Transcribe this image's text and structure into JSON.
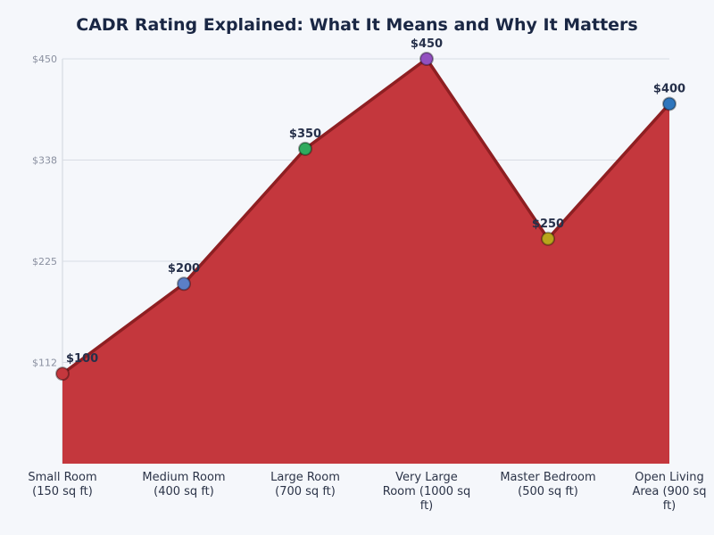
{
  "chart_data": {
    "type": "area",
    "title": "CADR Rating Explained: What It Means and Why It Matters",
    "xlabel": "",
    "ylabel": "",
    "categories": [
      "Small Room (150 sq ft)",
      "Medium Room (400 sq ft)",
      "Large Room (700 sq ft)",
      "Very Large Room (1000 sq ft)",
      "Master Bedroom (500 sq ft)",
      "Open Living Area (900 sq ft)"
    ],
    "values": [
      100,
      200,
      350,
      450,
      250,
      400
    ],
    "data_labels": [
      "$100",
      "$200",
      "$350",
      "$450",
      "$250",
      "$400"
    ],
    "ylim": [
      0,
      450
    ],
    "yticks": [
      112.5,
      225,
      337.5,
      450
    ],
    "ytick_labels": [
      "$112",
      "$225",
      "$338",
      "$450"
    ],
    "grid": true,
    "colors": {
      "fill": "#c4373d",
      "line": "#8e1f22",
      "markers": [
        "#c4373d",
        "#5b7fc7",
        "#2faa5e",
        "#9250c0",
        "#b8a51c",
        "#2f76bd"
      ]
    }
  }
}
